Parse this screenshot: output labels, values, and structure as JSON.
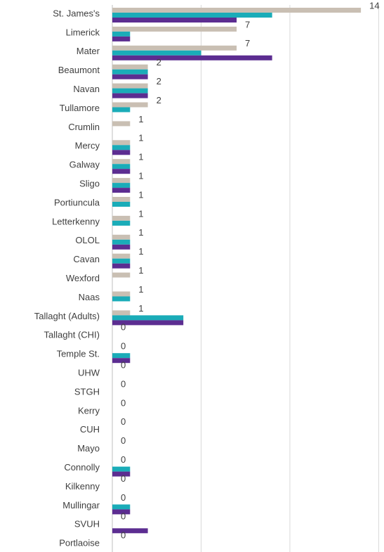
{
  "chart_data": {
    "type": "barh",
    "categories": [
      "St. James's",
      "Limerick",
      "Mater",
      "Beaumont",
      "Navan",
      "Tullamore",
      "Crumlin",
      "Mercy",
      "Galway",
      "Sligo",
      "Portiuncula",
      "Letterkenny",
      "OLOL",
      "Cavan",
      "Wexford",
      "Naas",
      "Tallaght (Adults)",
      "Tallaght (CHI)",
      "Temple St.",
      "UHW",
      "STGH",
      "Kerry",
      "CUH",
      "Mayo",
      "Connolly",
      "Kilkenny",
      "Mullingar",
      "SVUH",
      "Portlaoise"
    ],
    "series": [
      {
        "color": "#c9bfb3",
        "values": [
          14,
          7,
          7,
          2,
          2,
          2,
          1,
          1,
          1,
          1,
          1,
          1,
          1,
          1,
          1,
          1,
          1,
          0,
          0,
          0,
          0,
          0,
          0,
          0,
          0,
          0,
          0,
          0,
          0
        ],
        "labels": true
      },
      {
        "color": "#1aacb8",
        "values": [
          9,
          1,
          5,
          2,
          2,
          1,
          0,
          1,
          1,
          1,
          1,
          1,
          1,
          1,
          0,
          1,
          4,
          0,
          1,
          0,
          0,
          0,
          0,
          0,
          1,
          0,
          1,
          0,
          0
        ]
      },
      {
        "color": "#5c2d91",
        "values": [
          7,
          1,
          9,
          2,
          2,
          0,
          0,
          1,
          1,
          1,
          0,
          0,
          1,
          1,
          0,
          0,
          4,
          0,
          1,
          0,
          0,
          0,
          0,
          0,
          1,
          0,
          1,
          2,
          0
        ]
      }
    ],
    "xlim": [
      0,
      15.3
    ],
    "xticks": [
      0,
      5,
      10,
      15
    ],
    "grid": true
  }
}
